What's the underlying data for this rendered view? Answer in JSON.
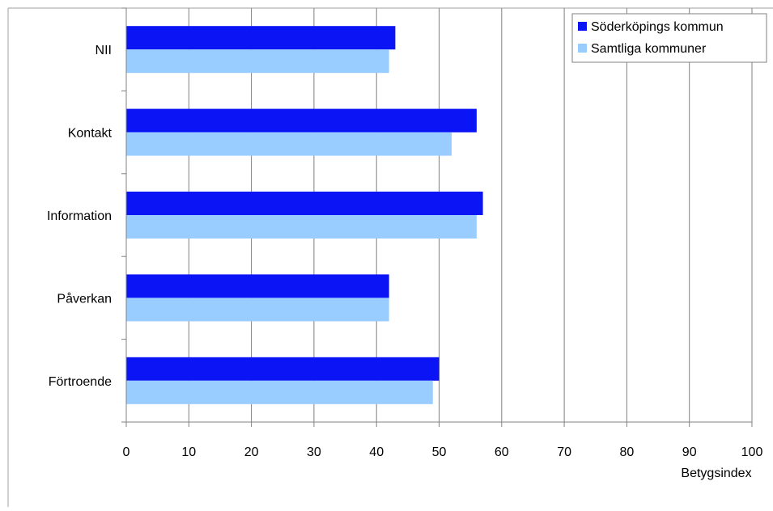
{
  "chart_data": {
    "type": "bar",
    "orientation": "horizontal",
    "categories": [
      "NII",
      "Kontakt",
      "Information",
      "Påverkan",
      "Förtroende"
    ],
    "series": [
      {
        "name": "Söderköpings kommun",
        "color": "#0a14f5",
        "values": [
          43,
          56,
          57,
          42,
          50
        ]
      },
      {
        "name": "Samtliga kommuner",
        "color": "#99ccff",
        "values": [
          42,
          52,
          56,
          42,
          49
        ]
      }
    ],
    "xlabel": "Betygsindex",
    "ylabel": "",
    "title": "",
    "xlim": [
      0,
      100
    ],
    "xticks": [
      "0",
      "10",
      "20",
      "30",
      "40",
      "50",
      "60",
      "70",
      "80",
      "90",
      "100"
    ],
    "grid": "vertical",
    "legend_position": "top-right"
  }
}
